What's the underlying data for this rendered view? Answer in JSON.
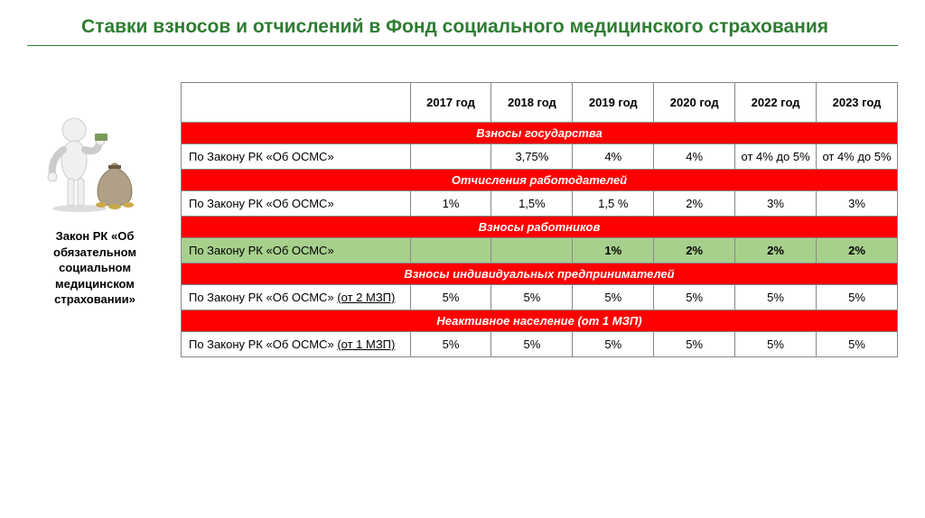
{
  "title": "Ставки взносов и отчислений в Фонд социального медицинского страхования",
  "caption": "Закон РК «Об обязательном социальном медицинском страховании»",
  "colors": {
    "title_color": "#2e7d32",
    "section_bg": "#ff0000",
    "section_text": "#ffffff",
    "green_row_bg": "#a8d08d",
    "border": "#888888"
  },
  "table": {
    "years": [
      "2017 год",
      "2018 год",
      "2019 год",
      "2020 год",
      "2022 год",
      "2023 год"
    ],
    "sections": [
      {
        "header": "Взносы государства",
        "rows": [
          {
            "label": "По Закону РК «Об ОСМС»",
            "cells": [
              "",
              "3,75%",
              "4%",
              "4%",
              "от 4% до 5%",
              "от 4% до 5%"
            ],
            "green": false
          }
        ]
      },
      {
        "header": "Отчисления работодателей",
        "rows": [
          {
            "label": "По Закону РК «Об ОСМС»",
            "cells": [
              "1%",
              "1,5%",
              "1,5 %",
              "2%",
              "3%",
              "3%"
            ],
            "green": false
          }
        ]
      },
      {
        "header": "Взносы работников",
        "rows": [
          {
            "label": "По Закону РК «Об ОСМС»",
            "cells": [
              "",
              "",
              "1%",
              "2%",
              "2%",
              "2%"
            ],
            "green": true
          }
        ]
      },
      {
        "header": "Взносы индивидуальных предпринимателей",
        "rows": [
          {
            "label": "По Закону РК «Об ОСМС»",
            "label_suffix_underlined": "(от 2 МЗП)",
            "cells": [
              "5%",
              "5%",
              "5%",
              "5%",
              "5%",
              "5%"
            ],
            "green": false
          }
        ]
      },
      {
        "header": "Неактивное население (от 1 МЗП)",
        "rows": [
          {
            "label": "По Закону РК «Об ОСМС»",
            "label_suffix_underlined": "(от 1 МЗП)",
            "cells": [
              "5%",
              "5%",
              "5%",
              "5%",
              "5%",
              "5%"
            ],
            "green": false
          }
        ]
      }
    ]
  }
}
